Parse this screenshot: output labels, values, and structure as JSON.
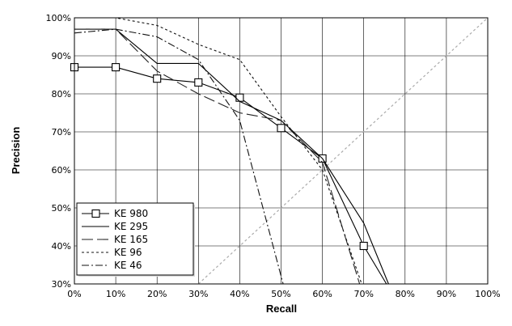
{
  "chart_data": {
    "type": "line",
    "title": "",
    "xlabel": "Recall",
    "ylabel": "Precision",
    "xlim": [
      0,
      100
    ],
    "ylim": [
      30,
      100
    ],
    "grid": true,
    "legend_position": "bottom-left",
    "x_ticks": [
      "0%",
      "10%",
      "20%",
      "30%",
      "40%",
      "50%",
      "60%",
      "70%",
      "80%",
      "90%",
      "100%"
    ],
    "y_ticks": [
      "30%",
      "40%",
      "50%",
      "60%",
      "70%",
      "80%",
      "90%",
      "100%"
    ],
    "x_tick_values": [
      0,
      10,
      20,
      30,
      40,
      50,
      60,
      70,
      80,
      90,
      100
    ],
    "y_tick_values": [
      30,
      40,
      50,
      60,
      70,
      80,
      90,
      100
    ],
    "series": [
      {
        "name": "KE 980",
        "color": "#000000",
        "dash": "",
        "marker": "square",
        "x": [
          0,
          10,
          20,
          30,
          40,
          50,
          60,
          70,
          75.5
        ],
        "y": [
          87,
          87,
          84,
          83,
          79,
          71,
          63,
          40,
          30
        ]
      },
      {
        "name": "KE 295",
        "color": "#000000",
        "dash": "",
        "marker": "none",
        "x": [
          0,
          10,
          20,
          30,
          40,
          50,
          60,
          70,
          76
        ],
        "y": [
          97,
          97,
          88,
          88,
          78,
          73,
          63,
          46,
          30
        ]
      },
      {
        "name": "KE 165",
        "color": "#222222",
        "dash": "14,5",
        "marker": "none",
        "x": [
          0,
          10,
          20,
          30,
          40,
          50,
          60,
          69
        ],
        "y": [
          97,
          97,
          86,
          80,
          75,
          73,
          62,
          30
        ]
      },
      {
        "name": "KE 96",
        "color": "#111111",
        "dash": "3,3",
        "marker": "none",
        "x": [
          0,
          10,
          20,
          30,
          40,
          50,
          60,
          69.5
        ],
        "y": [
          100,
          100,
          98,
          93,
          89,
          74,
          60,
          30
        ]
      },
      {
        "name": "KE 46",
        "color": "#111111",
        "dash": "9,3,2,3",
        "marker": "none",
        "x": [
          0,
          10,
          20,
          30,
          40,
          50.5
        ],
        "y": [
          96,
          97,
          95,
          89,
          73,
          30
        ]
      }
    ],
    "reference_line": {
      "color": "#aaaaaa",
      "dash": "3,3",
      "x": [
        30,
        100
      ],
      "y": [
        30,
        100
      ]
    }
  }
}
